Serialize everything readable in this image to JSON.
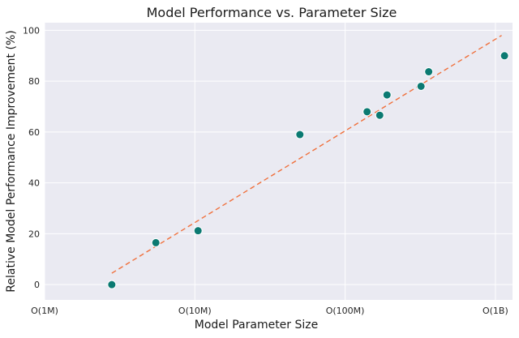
{
  "chart_data": {
    "type": "scatter",
    "title": "Model Performance vs. Parameter Size",
    "xlabel": "Model Parameter Size",
    "ylabel": "Relative Model Performance Improvement (%)",
    "x_scale": "log",
    "x_ticks": [
      {
        "value": 1000000,
        "label": "O(1M)"
      },
      {
        "value": 10000000,
        "label": "O(10M)"
      },
      {
        "value": 100000000,
        "label": "O(100M)"
      },
      {
        "value": 1000000000,
        "label": "O(1B)"
      }
    ],
    "y_ticks": [
      0,
      20,
      40,
      60,
      80,
      100
    ],
    "xlim": [
      1000000,
      1300000000
    ],
    "ylim": [
      -6,
      103
    ],
    "grid": true,
    "series": [
      {
        "values": [
          {
            "x": 2800000,
            "y": 0
          },
          {
            "x": 5500000,
            "y": 16.5
          },
          {
            "x": 10500000,
            "y": 21.2
          },
          {
            "x": 50000000,
            "y": 59
          },
          {
            "x": 140000000,
            "y": 68
          },
          {
            "x": 170000000,
            "y": 66.6
          },
          {
            "x": 190000000,
            "y": 74.6
          },
          {
            "x": 320000000,
            "y": 78
          },
          {
            "x": 360000000,
            "y": 83.7
          },
          {
            "x": 1150000000,
            "y": 90
          }
        ]
      }
    ],
    "trendline": {
      "start": {
        "x": 2800000,
        "y": 4.5
      },
      "end": {
        "x": 1100000000,
        "y": 98
      }
    },
    "colors": {
      "point": "#0b7a72",
      "trend": "#f0703c",
      "background": "#eaeaf2"
    }
  }
}
